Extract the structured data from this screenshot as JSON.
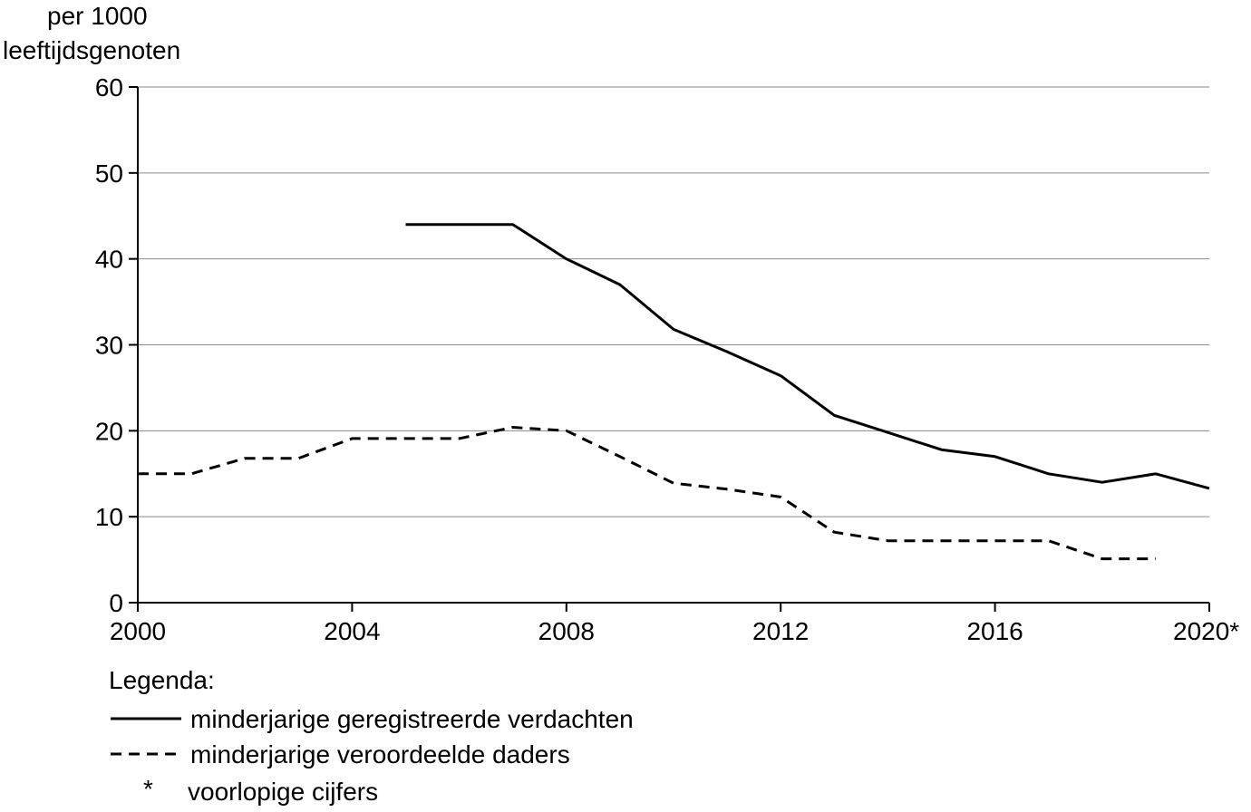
{
  "chart_data": {
    "type": "line",
    "ylabel_lines": [
      "per 1000",
      "leeftijdsgenoten"
    ],
    "xlabel": "",
    "xlim": [
      2000,
      2020
    ],
    "ylim": [
      0,
      60
    ],
    "x_ticks": [
      2000,
      2004,
      2008,
      2012,
      2016,
      2020
    ],
    "x_tick_labels": [
      "2000",
      "2004",
      "2008",
      "2012",
      "2016",
      "2020*"
    ],
    "y_ticks": [
      0,
      10,
      20,
      30,
      40,
      50,
      60
    ],
    "y_tick_labels": [
      "0",
      "10",
      "20",
      "30",
      "40",
      "50",
      "60"
    ],
    "grid": "horizontal",
    "legend_title": "Legenda:",
    "series": [
      {
        "name": "minderjarige geregistreerde verdachten",
        "style": "solid",
        "color": "#000000",
        "points": [
          [
            2005,
            44
          ],
          [
            2006,
            44
          ],
          [
            2007,
            44
          ],
          [
            2008,
            40
          ],
          [
            2009,
            37
          ],
          [
            2010,
            31.8
          ],
          [
            2011,
            29.2
          ],
          [
            2012,
            26.4
          ],
          [
            2013,
            21.8
          ],
          [
            2014,
            19.8
          ],
          [
            2015,
            17.8
          ],
          [
            2016,
            17
          ],
          [
            2017,
            15
          ],
          [
            2018,
            14
          ],
          [
            2019,
            15
          ],
          [
            2020,
            13.3
          ]
        ]
      },
      {
        "name": "minderjarige veroordeelde daders",
        "style": "dashed",
        "color": "#000000",
        "points": [
          [
            2000,
            15
          ],
          [
            2001,
            15
          ],
          [
            2002,
            16.8
          ],
          [
            2003,
            16.8
          ],
          [
            2004,
            19.1
          ],
          [
            2005,
            19.1
          ],
          [
            2006,
            19.1
          ],
          [
            2007,
            20.4
          ],
          [
            2008,
            20
          ],
          [
            2009,
            17
          ],
          [
            2010,
            13.9
          ],
          [
            2011,
            13.2
          ],
          [
            2012,
            12.3
          ],
          [
            2013,
            8.2
          ],
          [
            2014,
            7.2
          ],
          [
            2015,
            7.2
          ],
          [
            2016,
            7.2
          ],
          [
            2017,
            7.2
          ],
          [
            2018,
            5.1
          ],
          [
            2019,
            5.1
          ]
        ]
      }
    ],
    "footnote": {
      "symbol": "*",
      "text": "voorlopige cijfers"
    }
  }
}
